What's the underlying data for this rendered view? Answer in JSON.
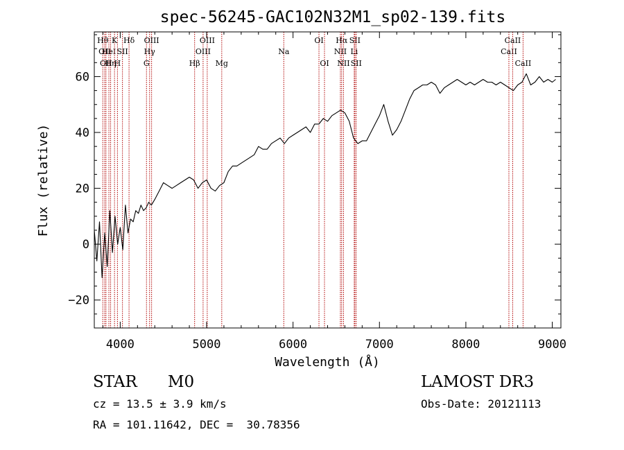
{
  "chart_data": {
    "type": "line",
    "title": "spec-56245-GAC102N32M1_sp02-139.fits",
    "xlabel": "Wavelength (Å)",
    "ylabel": "Flux (relative)",
    "xlim": [
      3700,
      9100
    ],
    "ylim": [
      -30,
      76
    ],
    "xticks": [
      4000,
      5000,
      6000,
      7000,
      8000,
      9000
    ],
    "yticks": [
      -20,
      0,
      20,
      40,
      60
    ],
    "grid": false,
    "series": [
      {
        "x": [
          3700,
          3730,
          3760,
          3790,
          3820,
          3850,
          3880,
          3910,
          3940,
          3970,
          4000,
          4030,
          4060,
          4090,
          4120,
          4150,
          4180,
          4210,
          4240,
          4270,
          4300,
          4330,
          4360,
          4400,
          4450,
          4500,
          4550,
          4600,
          4650,
          4700,
          4750,
          4800,
          4850,
          4900,
          4950,
          5000,
          5050,
          5100,
          5150,
          5200,
          5250,
          5300,
          5350,
          5400,
          5450,
          5500,
          5550,
          5600,
          5650,
          5700,
          5750,
          5800,
          5850,
          5900,
          5950,
          6000,
          6050,
          6100,
          6150,
          6200,
          6250,
          6300,
          6350,
          6400,
          6450,
          6500,
          6550,
          6600,
          6650,
          6700,
          6750,
          6800,
          6850,
          6900,
          6950,
          7000,
          7050,
          7100,
          7150,
          7200,
          7250,
          7300,
          7350,
          7400,
          7450,
          7500,
          7550,
          7600,
          7650,
          7700,
          7750,
          7800,
          7850,
          7900,
          7950,
          8000,
          8050,
          8100,
          8150,
          8200,
          8250,
          8300,
          8350,
          8400,
          8450,
          8500,
          8550,
          8600,
          8650,
          8700,
          8750,
          8800,
          8850,
          8900,
          8950,
          9000,
          9040
        ],
        "y": [
          5,
          -6,
          8,
          -12,
          4,
          -8,
          12,
          -3,
          10,
          0,
          6,
          -2,
          14,
          4,
          9,
          8,
          12,
          11,
          14,
          12,
          13,
          15,
          14,
          16,
          19,
          22,
          21,
          20,
          21,
          22,
          23,
          24,
          23,
          20,
          22,
          23,
          20,
          19,
          21,
          22,
          26,
          28,
          28,
          29,
          30,
          31,
          32,
          35,
          34,
          34,
          36,
          37,
          38,
          36,
          38,
          39,
          40,
          41,
          42,
          40,
          43,
          43,
          45,
          44,
          46,
          47,
          48,
          47,
          44,
          38,
          36,
          37,
          37,
          40,
          43,
          46,
          50,
          44,
          39,
          41,
          44,
          48,
          52,
          55,
          56,
          57,
          57,
          58,
          57,
          54,
          56,
          57,
          58,
          59,
          58,
          57,
          58,
          57,
          58,
          59,
          58,
          58,
          57,
          58,
          57,
          56,
          55,
          57,
          58,
          61,
          57,
          58,
          60,
          58,
          59,
          58,
          59
        ]
      }
    ],
    "lines": [
      {
        "x": 3798,
        "label": "Hθ",
        "row": 1
      },
      {
        "x": 3820,
        "label": "OII",
        "row": 2
      },
      {
        "x": 3835,
        "label": "OII",
        "row": 3
      },
      {
        "x": 3869,
        "label": "HeI",
        "row": 2
      },
      {
        "x": 3889,
        "label": "Hη",
        "row": 3
      },
      {
        "x": 3934,
        "label": "K",
        "row": 1
      },
      {
        "x": 3968,
        "label": "H",
        "row": 3
      },
      {
        "x": 4026,
        "label": "SII",
        "row": 2
      },
      {
        "x": 4102,
        "label": "Hδ",
        "row": 1
      },
      {
        "x": 4304,
        "label": "G",
        "row": 3
      },
      {
        "x": 4340,
        "label": "Hγ",
        "row": 2
      },
      {
        "x": 4363,
        "label": "OIII",
        "row": 1
      },
      {
        "x": 4861,
        "label": "Hβ",
        "row": 3
      },
      {
        "x": 4959,
        "label": "OIII",
        "row": 2
      },
      {
        "x": 5007,
        "label": "OIII",
        "row": 1
      },
      {
        "x": 5175,
        "label": "Mg",
        "row": 3
      },
      {
        "x": 5893,
        "label": "Na",
        "row": 2
      },
      {
        "x": 6300,
        "label": "OI",
        "row": 1
      },
      {
        "x": 6364,
        "label": "OI",
        "row": 3
      },
      {
        "x": 6548,
        "label": "NII",
        "row": 2
      },
      {
        "x": 6563,
        "label": "Hα",
        "row": 1
      },
      {
        "x": 6584,
        "label": "NII",
        "row": 3
      },
      {
        "x": 6708,
        "label": "Li",
        "row": 2
      },
      {
        "x": 6716,
        "label": "SII",
        "row": 1
      },
      {
        "x": 6731,
        "label": "SII",
        "row": 3
      },
      {
        "x": 8498,
        "label": "CaII",
        "row": 2
      },
      {
        "x": 8542,
        "label": "CaII",
        "row": 1
      },
      {
        "x": 8662,
        "label": "CaII",
        "row": 3
      }
    ],
    "line_color": "#b00000"
  },
  "info": {
    "object_class": "STAR",
    "subclass": "M0",
    "survey": "LAMOST DR3",
    "cz": "cz = 13.5 ± 3.9 km/s",
    "obs_date": "Obs-Date: 20121113",
    "coords": "RA = 101.11642, DEC =  30.78356"
  }
}
